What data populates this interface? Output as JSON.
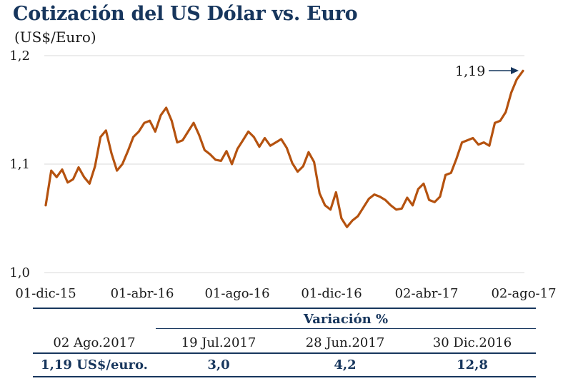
{
  "title": "Cotización del US Dólar vs. Euro",
  "subtitle": "(US$/Euro)",
  "colors": {
    "title": "#17365d",
    "line": "#b5520f",
    "grid": "#d9d9d9",
    "table_rule": "#17365d",
    "annotation_arrow": "#17365d"
  },
  "chart_data": {
    "type": "line",
    "title": "Cotización del US Dólar vs. Euro",
    "ylabel": "(US$/Euro)",
    "xlabel": "",
    "ylim": [
      1.0,
      1.2
    ],
    "yticks": [
      "1,0",
      "1,1",
      "1,2"
    ],
    "yticks_values": [
      1.0,
      1.1,
      1.2
    ],
    "xticks": [
      "01-dic-15",
      "01-abr-16",
      "01-ago-16",
      "01-dic-16",
      "02-abr-17",
      "02-ago-17"
    ],
    "grid": "horizontal",
    "annotation": {
      "text": "1,19",
      "x": "2017-08-02",
      "y": 1.19
    },
    "series": [
      {
        "x": [
          "2015-12-01",
          "2015-12-08",
          "2015-12-15",
          "2015-12-22",
          "2015-12-29",
          "2016-01-05",
          "2016-01-12",
          "2016-01-19",
          "2016-01-26",
          "2016-02-02",
          "2016-02-09",
          "2016-02-16",
          "2016-02-23",
          "2016-03-01",
          "2016-03-08",
          "2016-03-15",
          "2016-03-22",
          "2016-03-29",
          "2016-04-05",
          "2016-04-12",
          "2016-04-19",
          "2016-04-26",
          "2016-05-03",
          "2016-05-10",
          "2016-05-17",
          "2016-05-24",
          "2016-05-31",
          "2016-06-07",
          "2016-06-14",
          "2016-06-21",
          "2016-06-28",
          "2016-07-05",
          "2016-07-12",
          "2016-07-19",
          "2016-07-26",
          "2016-08-02",
          "2016-08-09",
          "2016-08-16",
          "2016-08-23",
          "2016-08-30",
          "2016-09-06",
          "2016-09-13",
          "2016-09-20",
          "2016-09-27",
          "2016-10-04",
          "2016-10-11",
          "2016-10-18",
          "2016-10-25",
          "2016-11-01",
          "2016-11-08",
          "2016-11-15",
          "2016-11-22",
          "2016-11-29",
          "2016-12-06",
          "2016-12-13",
          "2016-12-20",
          "2016-12-27",
          "2017-01-03",
          "2017-01-10",
          "2017-01-17",
          "2017-01-24",
          "2017-01-31",
          "2017-02-07",
          "2017-02-14",
          "2017-02-21",
          "2017-02-28",
          "2017-03-07",
          "2017-03-14",
          "2017-03-21",
          "2017-03-28",
          "2017-04-04",
          "2017-04-11",
          "2017-04-18",
          "2017-04-25",
          "2017-05-02",
          "2017-05-09",
          "2017-05-16",
          "2017-05-23",
          "2017-05-30",
          "2017-06-06",
          "2017-06-13",
          "2017-06-20",
          "2017-06-27",
          "2017-07-04",
          "2017-07-11",
          "2017-07-18",
          "2017-07-25",
          "2017-08-02"
        ],
        "values": [
          1.062,
          1.094,
          1.088,
          1.095,
          1.083,
          1.086,
          1.097,
          1.088,
          1.082,
          1.098,
          1.125,
          1.131,
          1.11,
          1.094,
          1.1,
          1.112,
          1.125,
          1.13,
          1.138,
          1.14,
          1.13,
          1.145,
          1.152,
          1.14,
          1.12,
          1.122,
          1.13,
          1.138,
          1.127,
          1.113,
          1.109,
          1.104,
          1.103,
          1.112,
          1.1,
          1.114,
          1.122,
          1.13,
          1.125,
          1.116,
          1.124,
          1.117,
          1.12,
          1.123,
          1.115,
          1.101,
          1.093,
          1.098,
          1.111,
          1.102,
          1.073,
          1.062,
          1.058,
          1.074,
          1.05,
          1.042,
          1.048,
          1.052,
          1.06,
          1.068,
          1.072,
          1.07,
          1.067,
          1.062,
          1.058,
          1.059,
          1.069,
          1.062,
          1.077,
          1.082,
          1.067,
          1.065,
          1.07,
          1.09,
          1.092,
          1.105,
          1.12,
          1.122,
          1.124,
          1.118,
          1.12,
          1.117,
          1.138,
          1.14,
          1.148,
          1.166,
          1.178,
          1.186
        ]
      }
    ]
  },
  "table": {
    "header_group": "Variación %",
    "columns": [
      "02 Ago.2017",
      "19 Jul.2017",
      "28 Jun.2017",
      "30 Dic.2016"
    ],
    "values": [
      "1,19 US$/euro.",
      "3,0",
      "4,2",
      "12,8"
    ]
  }
}
